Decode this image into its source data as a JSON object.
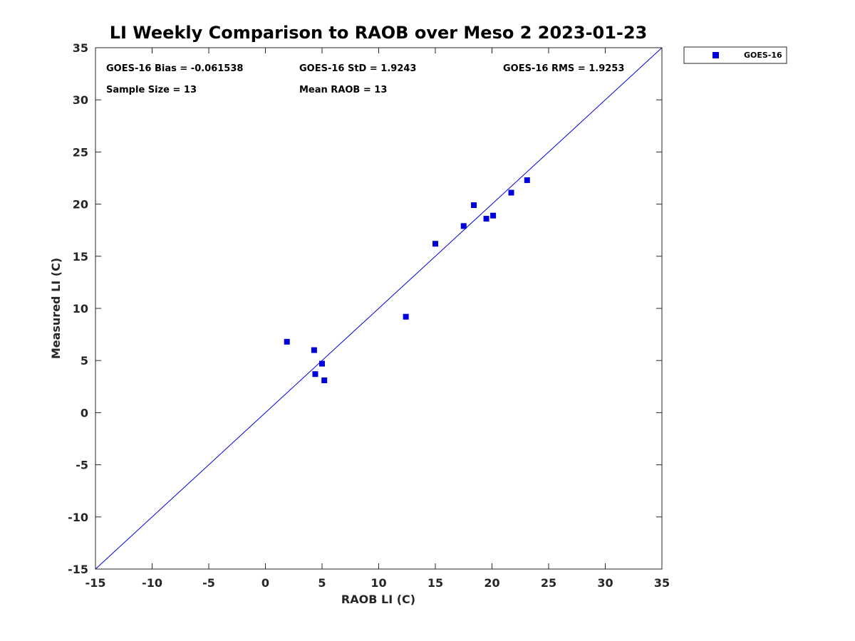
{
  "chart_data": {
    "type": "scatter",
    "title": "LI Weekly Comparison to RAOB over Meso 2 2023-01-23",
    "xlabel": "RAOB LI (C)",
    "ylabel": "Measured LI (C)",
    "xlim": [
      -15,
      35
    ],
    "ylim": [
      -15,
      35
    ],
    "xticks": [
      -15,
      -10,
      -5,
      0,
      5,
      10,
      15,
      20,
      25,
      30,
      35
    ],
    "yticks": [
      -15,
      -10,
      -5,
      0,
      5,
      10,
      15,
      20,
      25,
      30,
      35
    ],
    "grid": false,
    "legend_position": "outside-top-right",
    "reference_line": {
      "from": [
        -15,
        -15
      ],
      "to": [
        35,
        35
      ]
    },
    "series": [
      {
        "name": "GOES-16",
        "color": "#0000dd",
        "marker": "square",
        "x": [
          1.9,
          4.3,
          4.4,
          5.0,
          5.2,
          12.4,
          15.0,
          17.5,
          18.4,
          19.5,
          20.1,
          21.7,
          23.1
        ],
        "y": [
          6.8,
          6.0,
          3.7,
          4.7,
          3.1,
          9.2,
          16.2,
          17.9,
          19.9,
          18.6,
          18.9,
          21.1,
          22.3
        ]
      }
    ],
    "annotations": {
      "bias": "GOES-16 Bias = -0.061538",
      "std": "GOES-16 StD = 1.9243",
      "rms": "GOES-16 RMS = 1.9253",
      "sample_size": "Sample Size = 13",
      "mean_raob": "Mean RAOB = 13"
    }
  }
}
